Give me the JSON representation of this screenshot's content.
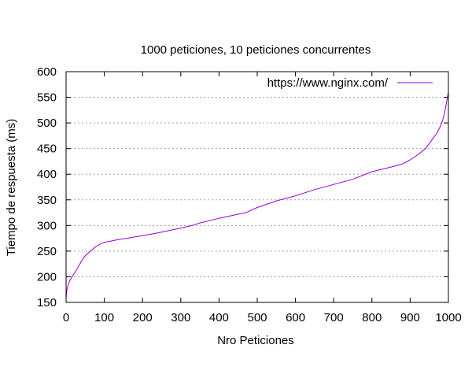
{
  "chart_data": {
    "type": "line",
    "title": "1000 peticiones, 10 peticiones concurrentes",
    "xlabel": "Nro Peticiones",
    "ylabel": "Tiempo de respuesta (ms)",
    "xlim": [
      0,
      1000
    ],
    "ylim": [
      150,
      600
    ],
    "xticks": [
      0,
      100,
      200,
      300,
      400,
      500,
      600,
      700,
      800,
      900,
      1000
    ],
    "yticks": [
      150,
      200,
      250,
      300,
      350,
      400,
      450,
      500,
      550,
      600
    ],
    "grid": "horizontal-dashed",
    "legend_position": "top-right",
    "colors": {
      "series": "#9400d3",
      "grid": "#a0a0a0",
      "axis": "#000000"
    },
    "series": [
      {
        "name": "https://www.nginx.com/",
        "x": [
          0,
          2,
          5,
          10,
          20,
          30,
          40,
          50,
          60,
          70,
          80,
          90,
          100,
          120,
          140,
          160,
          180,
          200,
          250,
          300,
          330,
          350,
          400,
          450,
          470,
          500,
          550,
          600,
          650,
          700,
          750,
          800,
          850,
          880,
          900,
          920,
          940,
          950,
          960,
          970,
          980,
          985,
          990,
          995,
          1000
        ],
        "y": [
          158,
          175,
          183,
          193,
          205,
          217,
          230,
          241,
          248,
          254,
          260,
          264,
          267,
          270,
          273,
          275,
          278,
          280,
          287,
          295,
          300,
          305,
          314,
          322,
          325,
          335,
          348,
          358,
          370,
          380,
          390,
          405,
          414,
          420,
          428,
          438,
          450,
          460,
          470,
          480,
          495,
          505,
          520,
          540,
          560
        ]
      }
    ]
  }
}
